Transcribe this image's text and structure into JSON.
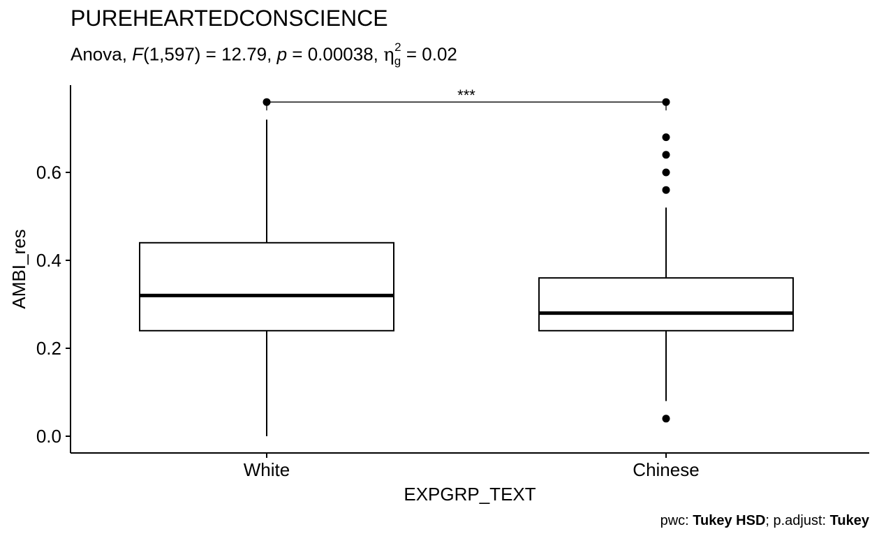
{
  "title": "PUREHEARTEDCONSCIENCE",
  "subtitle": {
    "prefix": "Anova, ",
    "F_symbol": "F",
    "df": "(1,597) = 12.79, ",
    "p_symbol": "p",
    "p_text": " = 0.00038, ",
    "eta_symbol": "η",
    "eta_sup": "2",
    "eta_sub": "g",
    "eta_value": " = 0.02"
  },
  "caption": {
    "pwc_label": "pwc: ",
    "pwc_method": "Tukey HSD",
    "sep": "; p.adjust: ",
    "adjust_method": "Tukey"
  },
  "chart_data": {
    "type": "boxplot",
    "xlabel": "EXPGRP_TEXT",
    "ylabel": "AMBI_res",
    "categories": [
      "White",
      "Chinese"
    ],
    "y_ticks": [
      0.0,
      0.2,
      0.4,
      0.6
    ],
    "y_tick_labels": [
      "0.0",
      "0.2",
      "0.4",
      "0.6"
    ],
    "ylim": [
      -0.04,
      0.78
    ],
    "boxes": [
      {
        "category": "White",
        "whisker_low": 0.0,
        "q1": 0.24,
        "median": 0.32,
        "q3": 0.44,
        "whisker_high": 0.72,
        "outliers": []
      },
      {
        "category": "Chinese",
        "whisker_low": 0.08,
        "q1": 0.24,
        "median": 0.28,
        "q3": 0.36,
        "whisker_high": 0.52,
        "outliers": [
          0.68,
          0.64,
          0.6,
          0.56,
          0.04
        ]
      }
    ],
    "comparison": {
      "group1": "White",
      "group2": "Chinese",
      "y": 0.76,
      "label": "***"
    },
    "grid": false,
    "legend": "none"
  }
}
